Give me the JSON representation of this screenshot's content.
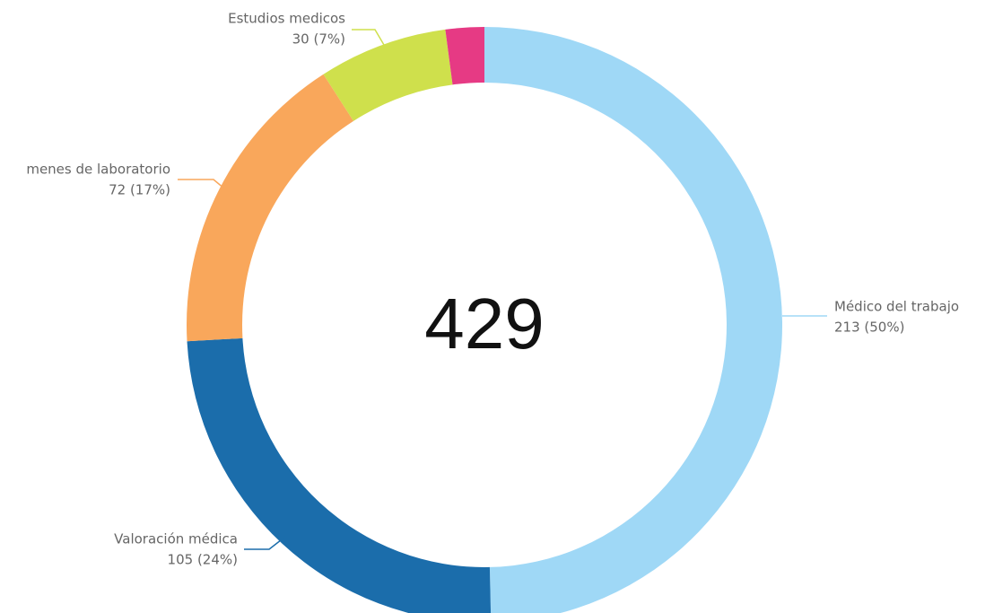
{
  "chart_data": {
    "type": "donut",
    "total": 429,
    "categories": [
      "Médico del trabajo",
      "Valoración médica",
      "menes de laboratorio",
      "Estudios medicos",
      null
    ],
    "values": [
      213,
      105,
      72,
      30,
      9
    ],
    "value_labels": [
      "213 (50%)",
      "105 (24%)",
      "72 (17%)",
      "30 (7%)",
      null
    ],
    "colors": [
      "#9fd8f6",
      "#1b6dab",
      "#f9a75b",
      "#cfe04c",
      "#e63a84"
    ]
  }
}
